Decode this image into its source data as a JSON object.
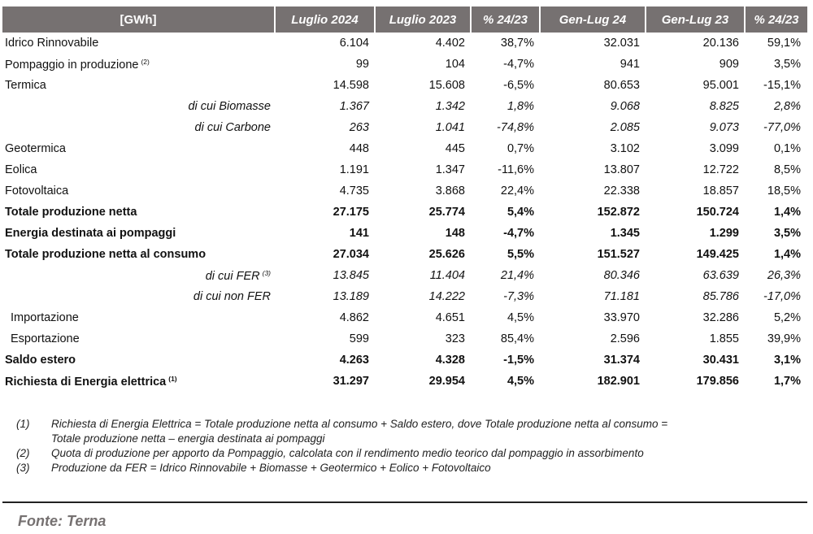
{
  "table": {
    "headers": [
      "[GWh]",
      "Luglio 2024",
      "Luglio 2023",
      "% 24/23",
      "Gen-Lug 24",
      "Gen-Lug 23",
      "% 24/23"
    ],
    "rows": [
      {
        "label": "Idrico Rinnovabile",
        "note": "",
        "style": "normal",
        "values": [
          "6.104",
          "4.402",
          "38,7%",
          "32.031",
          "20.136",
          "59,1%"
        ]
      },
      {
        "label": "Pompaggio in produzione",
        "note": "(2)",
        "style": "normal",
        "values": [
          "99",
          "104",
          "-4,7%",
          "941",
          "909",
          "3,5%"
        ]
      },
      {
        "label": "Termica",
        "note": "",
        "style": "normal",
        "values": [
          "14.598",
          "15.608",
          "-6,5%",
          "80.653",
          "95.001",
          "-15,1%"
        ]
      },
      {
        "label": "di cui Biomasse",
        "note": "",
        "style": "sub",
        "values": [
          "1.367",
          "1.342",
          "1,8%",
          "9.068",
          "8.825",
          "2,8%"
        ]
      },
      {
        "label": "di cui Carbone",
        "note": "",
        "style": "sub",
        "values": [
          "263",
          "1.041",
          "-74,8%",
          "2.085",
          "9.073",
          "-77,0%"
        ]
      },
      {
        "label": "Geotermica",
        "note": "",
        "style": "normal",
        "values": [
          "448",
          "445",
          "0,7%",
          "3.102",
          "3.099",
          "0,1%"
        ]
      },
      {
        "label": "Eolica",
        "note": "",
        "style": "normal",
        "values": [
          "1.191",
          "1.347",
          "-11,6%",
          "13.807",
          "12.722",
          "8,5%"
        ]
      },
      {
        "label": "Fotovoltaica",
        "note": "",
        "style": "normal",
        "values": [
          "4.735",
          "3.868",
          "22,4%",
          "22.338",
          "18.857",
          "18,5%"
        ]
      },
      {
        "label": "Totale produzione netta",
        "note": "",
        "style": "bold",
        "values": [
          "27.175",
          "25.774",
          "5,4%",
          "152.872",
          "150.724",
          "1,4%"
        ]
      },
      {
        "label": "Energia destinata ai pompaggi",
        "note": "",
        "style": "bold",
        "values": [
          "141",
          "148",
          "-4,7%",
          "1.345",
          "1.299",
          "3,5%"
        ]
      },
      {
        "label": "Totale produzione netta al consumo",
        "note": "",
        "style": "bold",
        "values": [
          "27.034",
          "25.626",
          "5,5%",
          "151.527",
          "149.425",
          "1,4%"
        ]
      },
      {
        "label": "di cui FER",
        "note": "(3)",
        "style": "sub",
        "values": [
          "13.845",
          "11.404",
          "21,4%",
          "80.346",
          "63.639",
          "26,3%"
        ]
      },
      {
        "label": "di cui non FER",
        "note": "",
        "style": "sub",
        "values": [
          "13.189",
          "14.222",
          "-7,3%",
          "71.181",
          "85.786",
          "-17,0%"
        ]
      },
      {
        "label": "Importazione",
        "note": "",
        "style": "indent",
        "values": [
          "4.862",
          "4.651",
          "4,5%",
          "33.970",
          "32.286",
          "5,2%"
        ]
      },
      {
        "label": "Esportazione",
        "note": "",
        "style": "indent",
        "values": [
          "599",
          "323",
          "85,4%",
          "2.596",
          "1.855",
          "39,9%"
        ]
      },
      {
        "label": "Saldo estero",
        "note": "",
        "style": "bold",
        "values": [
          "4.263",
          "4.328",
          "-1,5%",
          "31.374",
          "30.431",
          "3,1%"
        ]
      },
      {
        "label": "Richiesta di Energia elettrica",
        "note": "(1)",
        "style": "bold",
        "values": [
          "31.297",
          "29.954",
          "4,5%",
          "182.901",
          "179.856",
          "1,7%"
        ]
      }
    ]
  },
  "notes": [
    {
      "num": "(1)",
      "lines": [
        "Richiesta di Energia Elettrica = Totale produzione netta al consumo + Saldo estero, dove Totale produzione netta al consumo =",
        "Totale produzione netta – energia destinata ai pompaggi"
      ]
    },
    {
      "num": "(2)",
      "lines": [
        "Quota di produzione per apporto da Pompaggio, calcolata con il rendimento medio teorico dal pompaggio in assorbimento"
      ]
    },
    {
      "num": "(3)",
      "lines": [
        "Produzione da FER = Idrico Rinnovabile + Biomasse + Geotermico + Eolico + Fotovoltaico"
      ]
    }
  ],
  "source": "Fonte: Terna",
  "colors": {
    "header_bg": "#767171",
    "header_text": "#ffffff",
    "source_text": "#767171"
  }
}
